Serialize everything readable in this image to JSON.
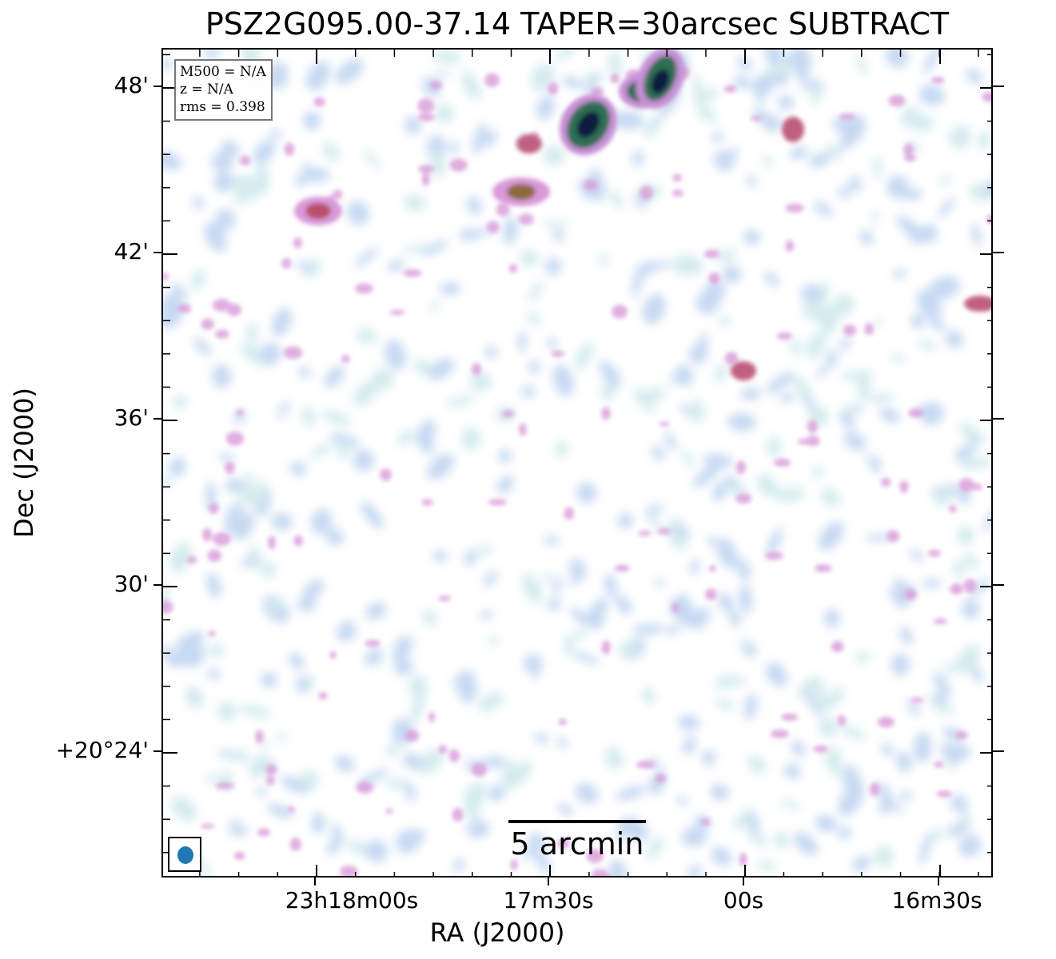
{
  "title": "PSZ2G095.00-37.14 TAPER=30arcsec SUBTRACT",
  "info": {
    "m500": "M500 = N/A",
    "z": "z = N/A",
    "rms": "rms = 0.398"
  },
  "scalebar_label": "5 arcmin",
  "axes": {
    "xlabel": "RA (J2000)",
    "ylabel": "Dec (J2000)",
    "x_ticks": [
      "23h18m00s",
      "17m30s",
      "00s",
      "16m30s"
    ],
    "y_ticks": [
      "48'",
      "42'",
      "36'",
      "30'",
      "+20°24'"
    ]
  },
  "colors": {
    "faint": "#bcd2f0",
    "teal": "#cde8ea",
    "pink": "#d89ad8",
    "red": "#b74f6a",
    "green": "#2e6e52",
    "navy": "#0c1a40",
    "beam": "#1f77b4"
  }
}
